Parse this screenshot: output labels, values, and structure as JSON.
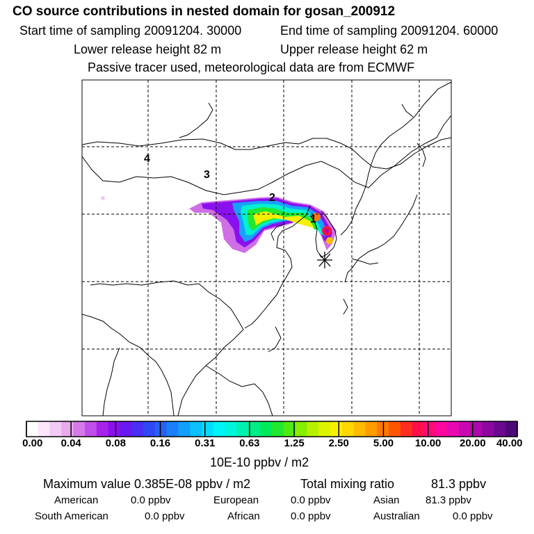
{
  "header": {
    "title": "CO  source contributions in nested domain for gosan_200912",
    "start_label": "Start time of sampling 20091204. 30000",
    "end_label": "End time of sampling 20091204. 60000",
    "lower_label": "Lower release height   82 m",
    "upper_label": "Upper release height   62 m",
    "tracer_label": "Passive tracer used, meteorological data are from ECMWF"
  },
  "map": {
    "region_labels": [
      "4",
      "3",
      "2",
      "1"
    ],
    "receptor_marker": "asterisk-icon",
    "border_color": "#000000"
  },
  "colorbar": {
    "tick_labels": [
      "0.00",
      "0.04",
      "0.08",
      "0.16",
      "0.31",
      "0.63",
      "1.25",
      "2.50",
      "5.00",
      "10.00",
      "20.00",
      "40.00"
    ],
    "unit": "10E-10 ppbv / m2",
    "colors": [
      "#ffffff",
      "#fbe6fb",
      "#f3c9f5",
      "#e9aaee",
      "#d57ae9",
      "#c04ee8",
      "#a823ea",
      "#8a10ef",
      "#6a18f1",
      "#4a2ef3",
      "#3146f5",
      "#2462f7",
      "#1a80fa",
      "#11a0fc",
      "#0ac0fe",
      "#04dcfe",
      "#00f4f8",
      "#00f6d8",
      "#00f2b0",
      "#00ee88",
      "#00ea5c",
      "#20e830",
      "#50ea10",
      "#86ee00",
      "#b6f200",
      "#dcf400",
      "#f8f000",
      "#ffd800",
      "#ffbc00",
      "#ff9c00",
      "#ff7800",
      "#ff5400",
      "#ff2e20",
      "#ff1048",
      "#ff0a78",
      "#ff08a0",
      "#e808b0",
      "#ca08b2",
      "#ac08ac",
      "#8c08a0",
      "#6c0890",
      "#4c0878"
    ]
  },
  "stats": {
    "max_label": "Maximum value  0.385E-08 ppbv / m2",
    "total_label": "Total mixing ratio",
    "total_value": "81.3 ppbv",
    "american_label": "American",
    "american_value": "0.0 ppbv",
    "european_label": "European",
    "european_value": "0.0 ppbv",
    "asian_label": "Asian",
    "asian_value": "81.3 ppbv",
    "south_american_label": "South American",
    "south_american_value": "0.0 ppbv",
    "african_label": "African",
    "african_value": "0.0 ppbv",
    "australian_label": "Australian",
    "australian_value": "0.0 ppbv"
  }
}
